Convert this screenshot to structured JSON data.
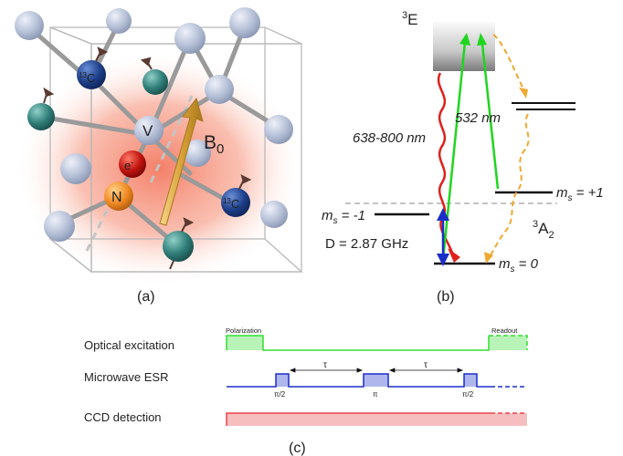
{
  "panel_a": {
    "caption": "(a)",
    "labels": {
      "c13_top": "13C",
      "vacancy": "V",
      "electron": "e-",
      "nitrogen": "N",
      "c13_right": "13C",
      "b_field": "B0"
    }
  },
  "panel_b": {
    "caption": "(b)",
    "excited_state": "3E",
    "ground_state": "3A2",
    "wavelength_emission": "638-800 nm",
    "wavelength_excitation": "532 nm",
    "level_plus1": "m_s = +1",
    "level_minus1": "m_s = -1",
    "level_zero": "m_s = 0",
    "zero_field_splitting": "D = 2.87 GHz",
    "colors": {
      "emission": "#e0201c",
      "excitation": "#1fd61f",
      "microwave": "#1a2fc8",
      "intersystem": "#f0a830"
    }
  },
  "panel_c": {
    "caption": "(c)",
    "rows": [
      {
        "label": "Optical excitation",
        "color": "#33dd33"
      },
      {
        "label": "Microwave ESR",
        "color": "#1a2fc8"
      },
      {
        "label": "CCD detection",
        "color": "#e8454a"
      }
    ],
    "phase_labels": {
      "polarization": "Polarization",
      "readout": "Readout"
    },
    "pulse_labels": {
      "pi_half_1": "π/2",
      "pi": "π",
      "pi_half_2": "π/2"
    },
    "delay_label": "τ"
  }
}
